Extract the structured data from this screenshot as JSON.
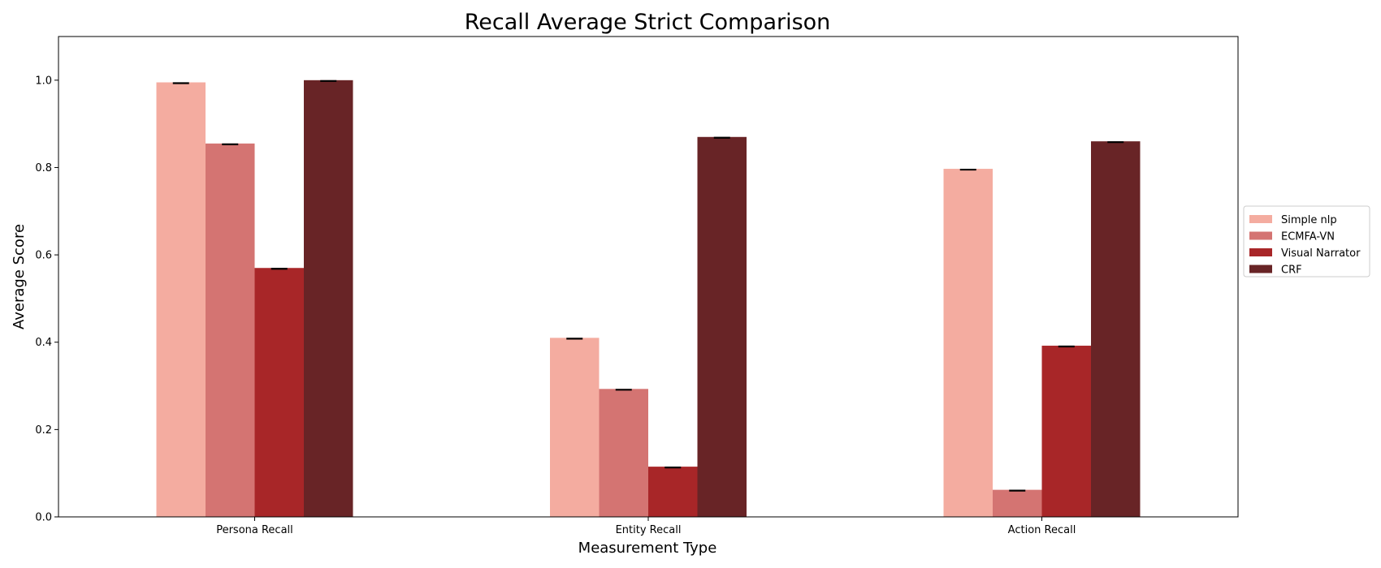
{
  "chart_data": {
    "type": "bar",
    "title": "Recall Average Strict Comparison",
    "xlabel": "Measurement Type",
    "ylabel": "Average Score",
    "categories": [
      "Persona Recall",
      "Entity Recall",
      "Action Recall"
    ],
    "ylim": [
      0,
      1.1
    ],
    "yticks": [
      "0.0",
      "0.2",
      "0.4",
      "0.6",
      "0.8",
      "1.0"
    ],
    "grid": false,
    "legend_position": "right",
    "error_bars": true,
    "series": [
      {
        "name": "Simple nlp",
        "color": "#f4aca0",
        "values": [
          0.995,
          0.41,
          0.797
        ]
      },
      {
        "name": "ECMFA-VN",
        "color": "#d47472",
        "values": [
          0.855,
          0.293,
          0.062
        ]
      },
      {
        "name": "Visual Narrator",
        "color": "#a82628",
        "values": [
          0.57,
          0.115,
          0.392
        ]
      },
      {
        "name": "CRF",
        "color": "#682426",
        "values": [
          1.0,
          0.87,
          0.86
        ]
      }
    ]
  }
}
